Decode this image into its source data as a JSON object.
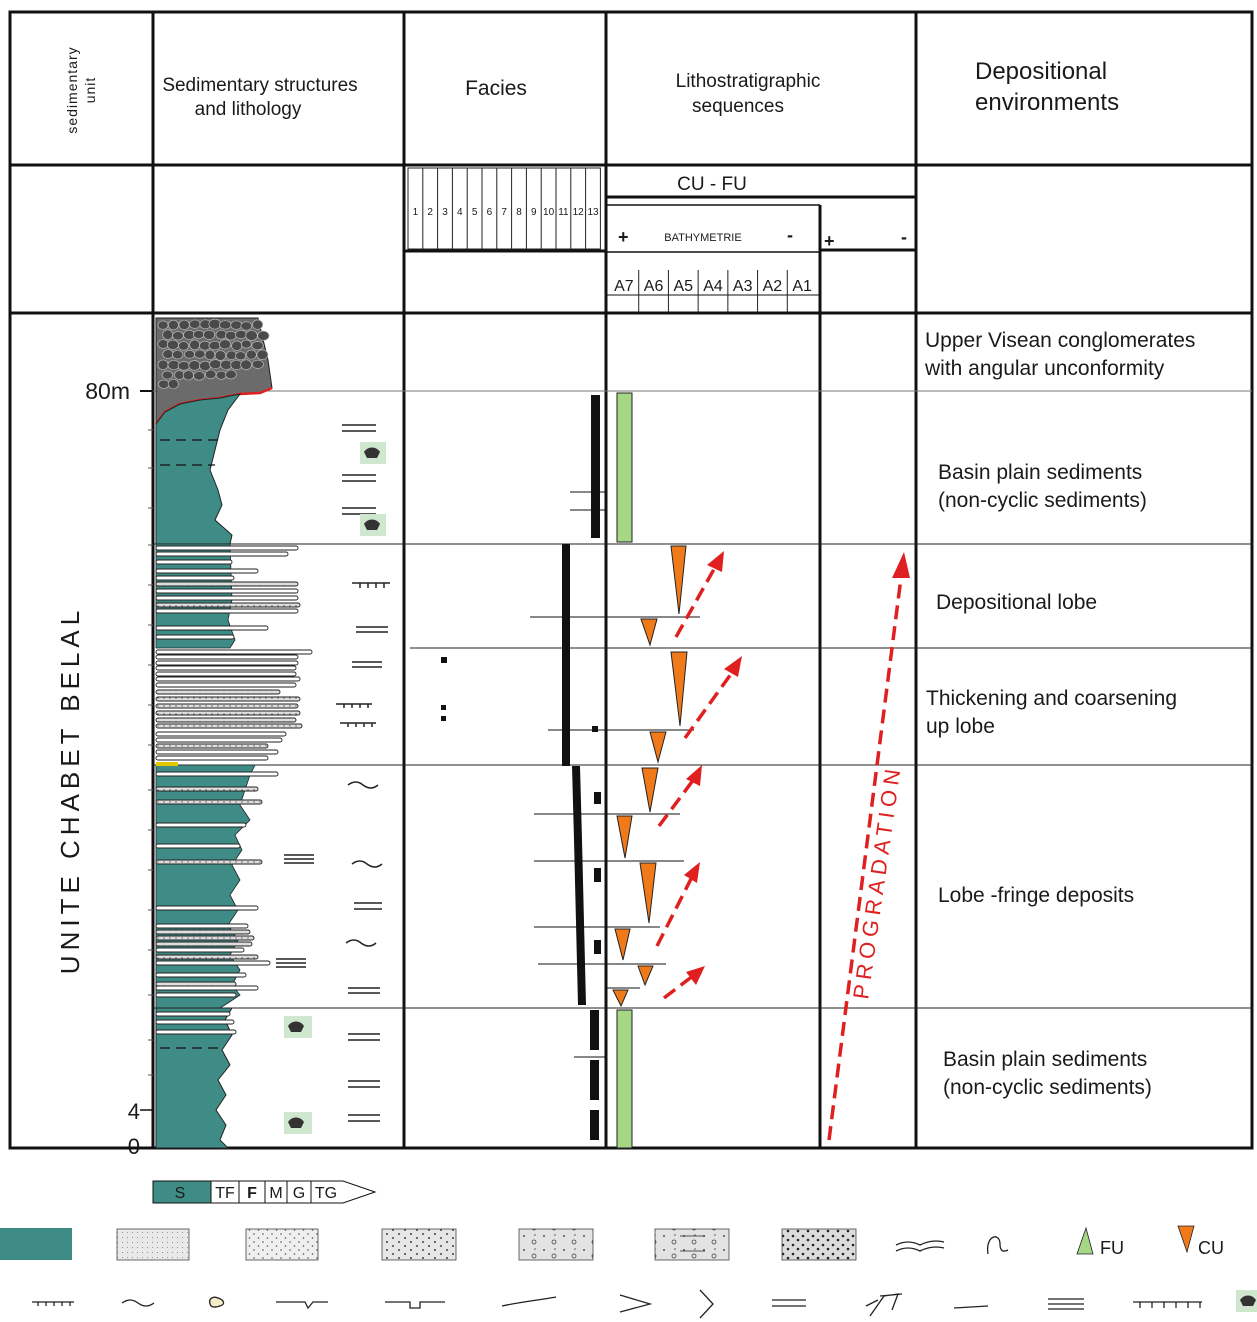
{
  "headers": {
    "unit": [
      "sedimentary",
      "unit"
    ],
    "structures": [
      "Sedimentary structures",
      "and lithology"
    ],
    "facies": "Facies",
    "litho": [
      "Lithostratigraphic",
      "sequences"
    ],
    "environments": [
      "Depositional",
      "environments"
    ]
  },
  "subheaders": {
    "cufu": "CU - FU",
    "bathymetrie": "BATHYMETRIE",
    "plus": "+",
    "minus": "-",
    "facies_numbers": [
      "1",
      "2",
      "3",
      "4",
      "5",
      "6",
      "7",
      "8",
      "9",
      "10",
      "11",
      "12",
      "13"
    ],
    "a_labels": [
      "A7",
      "A6",
      "A5",
      "A4",
      "A3",
      "A2",
      "A1"
    ]
  },
  "scale": {
    "top": "80m",
    "mid": "4",
    "zero": "0"
  },
  "unit_name": "UNITE CHABET BELAL",
  "progradation_label": "PROGRADATION",
  "environments": [
    [
      "Upper Visean conglomerates",
      "with angular unconformity"
    ],
    [
      "Basin plain sediments",
      "(non-cyclic sediments)"
    ],
    [
      "Depositional lobe"
    ],
    [
      "Thickening and coarsening",
      "up lobe"
    ],
    [
      "Lobe -fringe deposits"
    ],
    [
      "Basin plain sediments",
      "(non-cyclic sediments)"
    ]
  ],
  "grain_size": [
    "S",
    "TF",
    "F",
    "M",
    "G",
    "TG"
  ],
  "legend": {
    "fu": "FU",
    "cu": "CU"
  },
  "colors": {
    "shale": "#3e8c85",
    "fu": "#a6d785",
    "cu": "#f07a1a",
    "arrow": "#e02020",
    "unconformity": "#e02020"
  },
  "icons": [
    "shale-swatch",
    "very-fine-sand-swatch",
    "fine-sand-swatch",
    "medium-sand-swatch",
    "coarse-sand-pebble-swatch",
    "mud-clast-sand-swatch",
    "very-coarse-sand-swatch",
    "convolute-icon",
    "flute-icon",
    "fu-triangle-icon",
    "cu-triangle-icon",
    "bioturbation-icon",
    "ripple-icon",
    "clast-icon",
    "load-cast-icon",
    "groove-icon",
    "erosion-icon",
    "chevron-icon",
    "bracket-icon",
    "parallel-lamination-icon",
    "climbing-ripple-icon",
    "flat-icon",
    "thick-lamination-icon",
    "slump-icon",
    "fossil-icon"
  ]
}
